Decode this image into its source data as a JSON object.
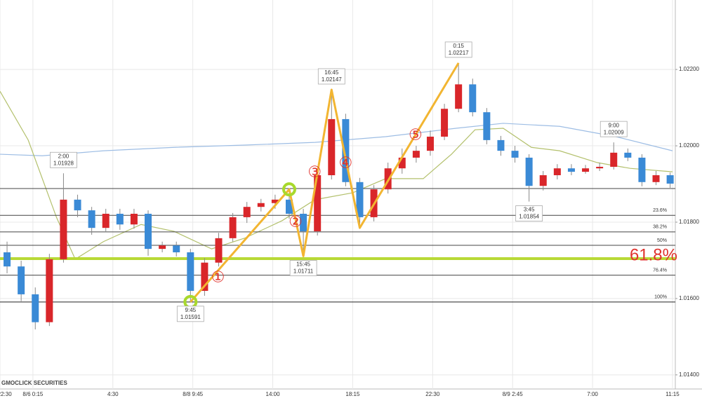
{
  "chart_data": {
    "type": "candlestick",
    "watermark": "GMOCLICK SECURITIES",
    "x": [
      1.5,
      4.5,
      7.5,
      10.5,
      13.5,
      16.5,
      19.5,
      22.5,
      25.5,
      28.5,
      31.5,
      34.5,
      37.5,
      40.5,
      43.5,
      46.5,
      49.5,
      52.5,
      55.5,
      58.5,
      61.5,
      64.5,
      67.5,
      70.5,
      73.5,
      76.5,
      79.5,
      82.5,
      85.5,
      88.5,
      91.5,
      94.5,
      97.5,
      100.5,
      103.5,
      106.5,
      109.5,
      112.5,
      115.5,
      118.5,
      121.5,
      124.5,
      127.5,
      130.5,
      133.5,
      136.5,
      139.5,
      142.5
    ],
    "open": [
      1.01721,
      1.01684,
      1.01611,
      1.01538,
      1.01703,
      1.01859,
      1.01831,
      1.01785,
      1.01822,
      1.01794,
      1.01822,
      1.0173,
      1.01739,
      1.01721,
      1.0162,
      1.01694,
      1.01758,
      1.01813,
      1.0184,
      1.0185,
      1.01859,
      1.01822,
      1.01776,
      1.01923,
      1.0207,
      1.01905,
      1.01813,
      1.01886,
      1.01941,
      1.01969,
      1.01987,
      1.02024,
      1.02097,
      1.02161,
      1.02088,
      1.02015,
      1.01987,
      1.01969,
      1.01895,
      1.01923,
      1.01941,
      1.01932,
      1.01941,
      1.01945,
      1.01982,
      1.01969,
      1.01905,
      1.01923
    ],
    "high": [
      1.01749,
      1.01699,
      1.01629,
      1.01717,
      1.01928,
      1.01872,
      1.0184,
      1.01835,
      1.01835,
      1.01835,
      1.01831,
      1.01749,
      1.01749,
      1.0173,
      1.01706,
      1.01772,
      1.01824,
      1.01853,
      1.01861,
      1.01872,
      1.01886,
      1.01835,
      1.01938,
      1.02147,
      1.02084,
      1.01916,
      1.01897,
      1.01956,
      1.01993,
      1.02,
      1.0204,
      1.0211,
      1.02217,
      1.02176,
      1.02099,
      1.02026,
      1.02,
      1.01978,
      1.01934,
      1.01952,
      1.01952,
      1.0195,
      1.01956,
      1.02009,
      1.01993,
      1.01978,
      1.01934,
      1.0193
    ],
    "low": [
      1.01666,
      1.01593,
      1.01519,
      1.01528,
      1.01694,
      1.01813,
      1.01767,
      1.01776,
      1.0178,
      1.01783,
      1.01712,
      1.01721,
      1.0171,
      1.01591,
      1.01607,
      1.01684,
      1.01749,
      1.01798,
      1.01828,
      1.01835,
      1.01809,
      1.01711,
      1.01765,
      1.01912,
      1.01894,
      1.01785,
      1.01802,
      1.01875,
      1.01927,
      1.01956,
      1.01974,
      1.02015,
      1.02088,
      1.02077,
      1.02004,
      1.01974,
      1.01956,
      1.01854,
      1.01883,
      1.01912,
      1.01923,
      1.01927,
      1.01934,
      1.01938,
      1.0196,
      1.01894,
      1.01897,
      1.0189
    ],
    "close": [
      1.01684,
      1.01611,
      1.01538,
      1.01703,
      1.01859,
      1.01831,
      1.01785,
      1.01822,
      1.01794,
      1.01822,
      1.0173,
      1.01739,
      1.01721,
      1.0162,
      1.01694,
      1.01758,
      1.01813,
      1.0184,
      1.0185,
      1.01859,
      1.01822,
      1.01776,
      1.01923,
      1.0207,
      1.01905,
      1.01813,
      1.01886,
      1.01941,
      1.01969,
      1.01987,
      1.02024,
      1.02097,
      1.02161,
      1.02088,
      1.02015,
      1.01987,
      1.01969,
      1.01895,
      1.01923,
      1.01941,
      1.01932,
      1.01941,
      1.01945,
      1.01982,
      1.01969,
      1.01905,
      1.01923,
      1.01901
    ],
    "up_color": "#d9262a",
    "down_color": "#3a8ad6",
    "moving_averages": [
      {
        "color": "#9dbde4",
        "x": [
          0,
          9,
          22,
          37,
          52,
          67,
          82,
          97,
          107,
          119,
          131,
          143
        ],
        "values": [
          1.01978,
          1.01974,
          1.01987,
          1.01996,
          1.02002,
          1.02009,
          1.02024,
          1.02046,
          1.02059,
          1.02051,
          1.02024,
          1.01987
        ]
      },
      {
        "color": "#b3c06c",
        "x": [
          0,
          6,
          12,
          16,
          22,
          30,
          37,
          45,
          52,
          60,
          67,
          75,
          82,
          90,
          96,
          101,
          107,
          113,
          119,
          127,
          134,
          143
        ],
        "values": [
          1.02143,
          1.02015,
          1.01813,
          1.01703,
          1.01749,
          1.01794,
          1.01776,
          1.0173,
          1.01758,
          1.01804,
          1.01859,
          1.01877,
          1.01914,
          1.01914,
          1.01978,
          1.02042,
          1.02046,
          1.01996,
          1.01987,
          1.01956,
          1.01941,
          1.01932
        ]
      }
    ],
    "xlim": [
      0,
      143.6
    ],
    "ylim": [
      1.01363,
      1.02382
    ],
    "xticks": [
      {
        "value": 0,
        "label": "8/5 22:30"
      },
      {
        "value": 7,
        "label": "8/6 0:15"
      },
      {
        "value": 24,
        "label": "4:30"
      },
      {
        "value": 41,
        "label": "8/8 9:45"
      },
      {
        "value": 58,
        "label": "14:00"
      },
      {
        "value": 75,
        "label": "18:15"
      },
      {
        "value": 92,
        "label": "22:30"
      },
      {
        "value": 109,
        "label": "8/9 2:45"
      },
      {
        "value": 126,
        "label": "7:00"
      },
      {
        "value": 143,
        "label": "11:15"
      }
    ],
    "yticks": [
      {
        "value": 1.022,
        "label": "1.02200"
      },
      {
        "value": 1.02,
        "label": "1.02000"
      },
      {
        "value": 1.018,
        "label": "1.01800"
      },
      {
        "value": 1.016,
        "label": "1.01600"
      },
      {
        "value": 1.014,
        "label": "1.01400"
      }
    ],
    "grid": true,
    "fibonacci": {
      "high": 1.01888,
      "low": 1.01591,
      "color": "#444444",
      "highlight": 61.8,
      "highlight_color": "#b8d936",
      "highlight_label_color": "#e0322d",
      "levels": [
        {
          "value": 23.6,
          "label": "23.6%"
        },
        {
          "value": 38.2,
          "label": "38.2%"
        },
        {
          "value": 50,
          "label": "50%"
        },
        {
          "value": 61.8,
          "label": "61.8%"
        },
        {
          "value": 76.4,
          "label": "76.4%"
        },
        {
          "value": 100,
          "label": "100%"
        }
      ]
    },
    "annotations": [
      {
        "time": "2:00",
        "price": 1.01928
      },
      {
        "time": "9:45",
        "price": 1.01591
      },
      {
        "time": "15:45",
        "price": 1.01711
      },
      {
        "time": "16:45",
        "price": 1.02147
      },
      {
        "time": "0:15",
        "price": 1.02217
      },
      {
        "time": "3:45",
        "price": 1.01854
      },
      {
        "time": "9:00",
        "price": 1.02009
      }
    ],
    "waves": {
      "color": "#f2b531",
      "label_color": "#e0322d",
      "marker_color": "#a8d92c",
      "labels": [
        "①",
        "②",
        "③",
        "④",
        "⑤"
      ],
      "points": [
        1.01591,
        1.01886,
        1.01711,
        1.02147,
        1.01785,
        1.02217
      ]
    }
  }
}
